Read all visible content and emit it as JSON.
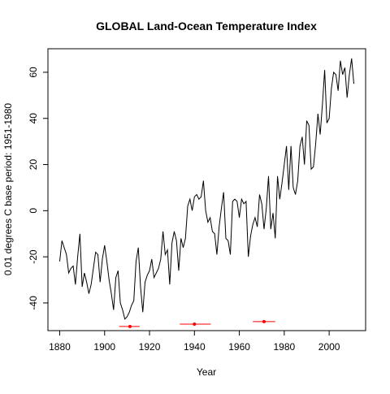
{
  "chart_data": {
    "type": "line",
    "title": "GLOBAL Land-Ocean Temperature Index",
    "xlabel": "Year",
    "ylabel": "0.01 degrees C base period: 1951-1980",
    "x": [
      1880,
      1881,
      1882,
      1883,
      1884,
      1885,
      1886,
      1887,
      1888,
      1889,
      1890,
      1891,
      1892,
      1893,
      1894,
      1895,
      1896,
      1897,
      1898,
      1899,
      1900,
      1901,
      1902,
      1903,
      1904,
      1905,
      1906,
      1907,
      1908,
      1909,
      1910,
      1911,
      1912,
      1913,
      1914,
      1915,
      1916,
      1917,
      1918,
      1919,
      1920,
      1921,
      1922,
      1923,
      1924,
      1925,
      1926,
      1927,
      1928,
      1929,
      1930,
      1931,
      1932,
      1933,
      1934,
      1935,
      1936,
      1937,
      1938,
      1939,
      1940,
      1941,
      1942,
      1943,
      1944,
      1945,
      1946,
      1947,
      1948,
      1949,
      1950,
      1951,
      1952,
      1953,
      1954,
      1955,
      1956,
      1957,
      1958,
      1959,
      1960,
      1961,
      1962,
      1963,
      1964,
      1965,
      1966,
      1967,
      1968,
      1969,
      1970,
      1971,
      1972,
      1973,
      1974,
      1975,
      1976,
      1977,
      1978,
      1979,
      1980,
      1981,
      1982,
      1983,
      1984,
      1985,
      1986,
      1987,
      1988,
      1989,
      1990,
      1991,
      1992,
      1993,
      1994,
      1995,
      1996,
      1997,
      1998,
      1999,
      2000,
      2001,
      2002,
      2003,
      2004,
      2005,
      2006,
      2007,
      2008,
      2009,
      2010,
      2011
    ],
    "series": [
      {
        "color": "#000000",
        "values": [
          -22,
          -13,
          -16,
          -19,
          -27,
          -25,
          -24,
          -32,
          -20,
          -10,
          -33,
          -27,
          -31,
          -36,
          -32,
          -25,
          -18,
          -19,
          -31,
          -21,
          -15,
          -22,
          -30,
          -36,
          -43,
          -29,
          -26,
          -40,
          -43,
          -47,
          -46,
          -44,
          -41,
          -39,
          -22,
          -16,
          -33,
          -44,
          -31,
          -28,
          -26,
          -21,
          -29,
          -27,
          -25,
          -21,
          -9,
          -19,
          -17,
          -32,
          -14,
          -9,
          -13,
          -26,
          -12,
          -16,
          -12,
          2,
          5,
          0,
          6,
          7,
          5,
          6,
          13,
          0,
          -5,
          -3,
          -9,
          -10,
          -19,
          -7,
          1,
          8,
          -12,
          -13,
          -19,
          4,
          5,
          4,
          -3,
          5,
          3,
          4,
          -20,
          -11,
          -6,
          -3,
          -7,
          7,
          3,
          -8,
          1,
          15,
          -8,
          -1,
          -12,
          15,
          5,
          12,
          20,
          28,
          9,
          28,
          10,
          7,
          13,
          28,
          32,
          20,
          39,
          37,
          18,
          19,
          29,
          42,
          33,
          46,
          61,
          38,
          40,
          53,
          60,
          59,
          52,
          65,
          59,
          62,
          49,
          59,
          66,
          55
        ]
      }
    ],
    "error_bars": {
      "color": "#ff0000",
      "x": [
        1911.3,
        1940,
        1971
      ],
      "y": [
        -50.2,
        -49.2,
        -48.1
      ],
      "xlow": [
        1906.5,
        1933.5,
        1966
      ],
      "xhigh": [
        1915.6,
        1947.3,
        1976
      ]
    },
    "xlim": [
      1874.76,
      2016.24
    ],
    "ylim": [
      -52,
      70.2
    ],
    "xticks": [
      1880,
      1900,
      1920,
      1940,
      1960,
      1980,
      2000
    ],
    "yticks": [
      -40,
      -20,
      0,
      20,
      40,
      60
    ]
  }
}
